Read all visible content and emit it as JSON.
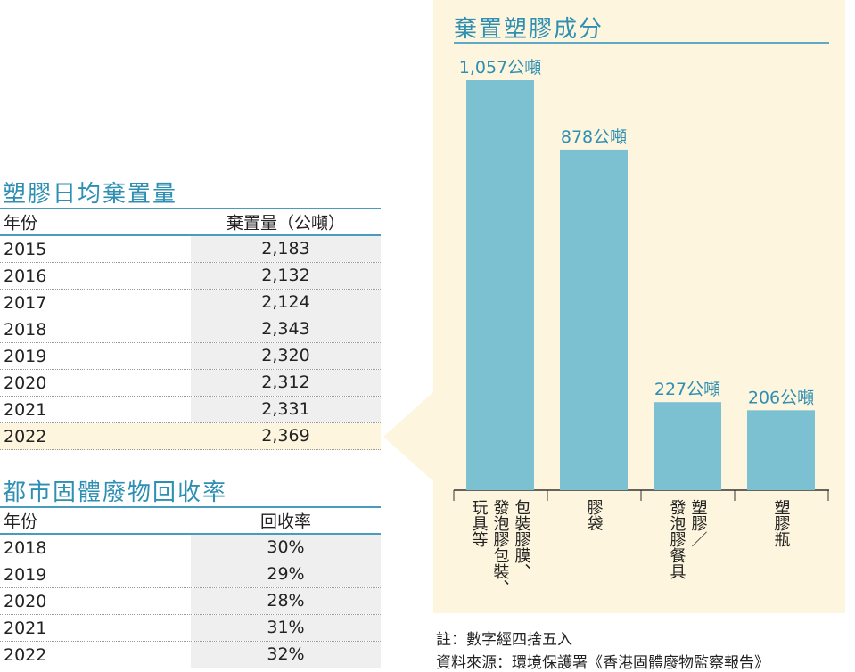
{
  "chart_data": {
    "type": "bar",
    "title": "棄置塑膠成分",
    "unit": "公噸",
    "categories": [
      "包裝膠膜、發泡膠包裝、玩具等",
      "膠袋",
      "塑膠/發泡膠餐具",
      "塑膠瓶"
    ],
    "category_label_columns": [
      [
        "包裝膠膜、",
        "發泡膠包裝、",
        "玩具等"
      ],
      [
        "膠袋"
      ],
      [
        "塑膠／",
        "發泡膠餐具"
      ],
      [
        "塑膠瓶"
      ]
    ],
    "values": [
      1057,
      878,
      227,
      206
    ],
    "value_labels": [
      "1,057公噸",
      "878公噸",
      "227公噸",
      "206公噸"
    ],
    "ylim": [
      0,
      1057
    ],
    "bar_color": "#7bc1d1"
  },
  "daily_table": {
    "title": "塑膠日均棄置量",
    "headers": [
      "年份",
      "棄置量（公噸）"
    ],
    "rows": [
      {
        "year": "2015",
        "value": "2,183"
      },
      {
        "year": "2016",
        "value": "2,132"
      },
      {
        "year": "2017",
        "value": "2,124"
      },
      {
        "year": "2018",
        "value": "2,343"
      },
      {
        "year": "2019",
        "value": "2,320"
      },
      {
        "year": "2020",
        "value": "2,312"
      },
      {
        "year": "2021",
        "value": "2,331"
      },
      {
        "year": "2022",
        "value": "2,369"
      }
    ]
  },
  "recovery_table": {
    "title": "都市固體廢物回收率",
    "headers": [
      "年份",
      "回收率"
    ],
    "rows": [
      {
        "year": "2018",
        "value": "30%"
      },
      {
        "year": "2019",
        "value": "29%"
      },
      {
        "year": "2020",
        "value": "28%"
      },
      {
        "year": "2021",
        "value": "31%"
      },
      {
        "year": "2022",
        "value": "32%"
      }
    ]
  },
  "notes": {
    "rounding": "註：數字經四捨五入",
    "source": "資料來源：環境保護署《香港固體廢物監察報告》"
  },
  "colors": {
    "accent": "#2e8fb3",
    "panel": "#fdf5dd",
    "bar": "#7bc1d1"
  }
}
